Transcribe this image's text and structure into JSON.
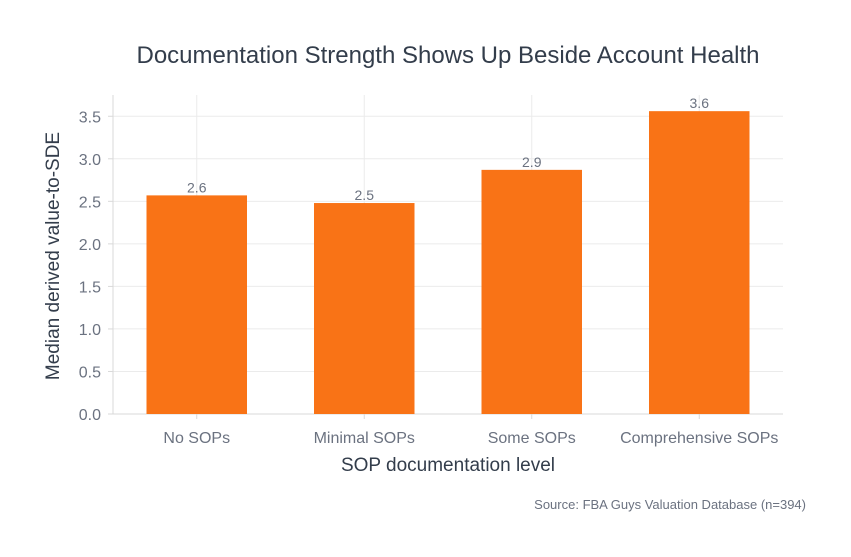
{
  "chart_data": {
    "type": "bar",
    "title": "Documentation Strength Shows Up Beside Account Health",
    "xlabel": "SOP documentation level",
    "ylabel": "Median derived value-to-SDE",
    "categories": [
      "No SOPs",
      "Minimal SOPs",
      "Some SOPs",
      "Comprehensive SOPs"
    ],
    "values": [
      2.57,
      2.48,
      2.87,
      3.56
    ],
    "data_labels": [
      "2.6",
      "2.5",
      "2.9",
      "3.6"
    ],
    "ylim": [
      0,
      3.75
    ],
    "yticks": [
      0.0,
      0.5,
      1.0,
      1.5,
      2.0,
      2.5,
      3.0,
      3.5
    ],
    "ytick_labels": [
      "0.0",
      "0.5",
      "1.0",
      "1.5",
      "2.0",
      "2.5",
      "3.0",
      "3.5"
    ],
    "grid": true,
    "bar_color": "#f97316",
    "source": "Source: FBA Guys Valuation Database (n=394)"
  }
}
